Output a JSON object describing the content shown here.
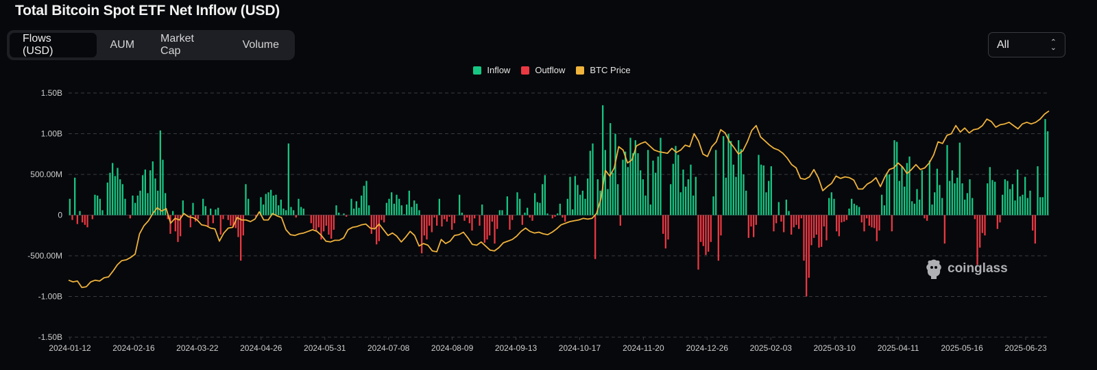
{
  "title": "Total Bitcoin Spot ETF Net Inflow (USD)",
  "tabs": [
    {
      "label": "Flows (USD)",
      "active": true
    },
    {
      "label": "AUM",
      "active": false
    },
    {
      "label": "Market Cap",
      "active": false
    },
    {
      "label": "Volume",
      "active": false
    }
  ],
  "range_select": {
    "value": "All"
  },
  "watermark": "coinglass",
  "colors": {
    "inflow": "#16c784",
    "outflow": "#ea3943",
    "price": "#f0b33c",
    "background": "#07080b",
    "grid": "#3a3b40",
    "axis_text": "#cfcfcf"
  },
  "chart_data": {
    "type": "bar",
    "legend": [
      {
        "name": "Inflow",
        "color": "#16c784"
      },
      {
        "name": "Outflow",
        "color": "#ea3943"
      },
      {
        "name": "BTC Price",
        "color": "#f0b33c"
      }
    ],
    "y_ticks": [
      "1.50B",
      "1.00B",
      "500.00M",
      "0",
      "-500.00M",
      "-1.00B",
      "-1.50B"
    ],
    "y_tick_values": [
      1500,
      1000,
      500,
      0,
      -500,
      -1000,
      -1500
    ],
    "ylim": [
      -1500,
      1500
    ],
    "y_unit": "millions USD",
    "x_ticks": [
      "2024-01-12",
      "2024-02-16",
      "2024-03-22",
      "2024-04-26",
      "2024-05-31",
      "2024-07-08",
      "2024-08-09",
      "2024-09-13",
      "2024-10-17",
      "2024-11-20",
      "2024-12-26",
      "2025-02-03",
      "2025-03-10",
      "2025-04-11",
      "2025-05-16",
      "2025-06-23"
    ],
    "grid": true,
    "legend_position": "top-center",
    "flows": [
      200,
      -60,
      460,
      -110,
      50,
      -90,
      -120,
      -150,
      0,
      -50,
      250,
      240,
      200,
      60,
      0,
      400,
      520,
      640,
      480,
      580,
      440,
      380,
      200,
      0,
      -40,
      240,
      150,
      240,
      300,
      490,
      560,
      270,
      550,
      660,
      450,
      300,
      1040,
      680,
      270,
      -50,
      -230,
      50,
      -200,
      -330,
      -260,
      180,
      0,
      0,
      -150,
      150,
      -80,
      -50,
      0,
      200,
      110,
      -140,
      80,
      -100,
      70,
      90,
      -240,
      -50,
      0,
      -60,
      -130,
      -150,
      -160,
      -270,
      -560,
      -250,
      380,
      200,
      0,
      0,
      -20,
      0,
      220,
      130,
      260,
      280,
      310,
      240,
      250,
      120,
      190,
      80,
      60,
      880,
      100,
      60,
      -30,
      200,
      100,
      80,
      0,
      0,
      -100,
      -170,
      -200,
      -150,
      -300,
      -200,
      -130,
      -240,
      -290,
      -180,
      120,
      30,
      0,
      20,
      -20,
      0,
      200,
      80,
      170,
      90,
      240,
      360,
      420,
      120,
      -230,
      -160,
      -360,
      -320,
      -60,
      -90,
      150,
      200,
      280,
      140,
      250,
      200,
      120,
      10,
      130,
      300,
      100,
      180,
      140,
      60,
      -470,
      -250,
      -300,
      -130,
      -210,
      -30,
      -130,
      200,
      -140,
      -50,
      -80,
      -20,
      -180,
      -100,
      0,
      250,
      30,
      -70,
      -30,
      -100,
      -190,
      -40,
      0,
      -130,
      130,
      -340,
      -300,
      -250,
      -80,
      -350,
      -170,
      60,
      60,
      0,
      230,
      -180,
      -60,
      0,
      280,
      200,
      -120,
      30,
      90,
      -30,
      -70,
      270,
      160,
      150,
      380,
      490,
      20,
      0,
      -40,
      -20,
      20,
      140,
      -30,
      -80,
      200,
      470,
      70,
      480,
      370,
      250,
      300,
      200,
      450,
      790,
      880,
      -540,
      440,
      300,
      1350,
      800,
      320,
      1130,
      520,
      1000,
      380,
      -130,
      680,
      780,
      590,
      950,
      760,
      920,
      760,
      550,
      440,
      240,
      800,
      130,
      670,
      520,
      720,
      950,
      -230,
      -410,
      -300,
      380,
      630,
      850,
      740,
      280,
      560,
      350,
      440,
      620,
      240,
      470,
      -670,
      -330,
      -380,
      -490,
      -450,
      -330,
      230,
      800,
      -560,
      -250,
      970,
      460,
      1000,
      910,
      620,
      470,
      920,
      810,
      500,
      300,
      -280,
      -140,
      -270,
      -120,
      740,
      620,
      610,
      280,
      420,
      600,
      -200,
      -100,
      160,
      -80,
      -210,
      190,
      50,
      -240,
      -150,
      -120,
      -170,
      -40,
      -560,
      -1000,
      -770,
      -370,
      -280,
      -240,
      -400,
      -390,
      -140,
      -310,
      210,
      280,
      200,
      -200,
      -260,
      -90,
      -80,
      -60,
      80,
      200,
      140,
      120,
      100,
      -90,
      -200,
      -40,
      -130,
      -150,
      -160,
      -320,
      -190,
      250,
      120,
      520,
      500,
      -200,
      920,
      900,
      420,
      600,
      350,
      640,
      720,
      170,
      140,
      320,
      190,
      550,
      -40,
      -70,
      670,
      130,
      280,
      570,
      370,
      210,
      -350,
      860,
      420,
      550,
      390,
      460,
      890,
      390,
      190,
      270,
      440,
      210
    ],
    "flows_tail": [
      -50,
      -610,
      -400,
      -220,
      -250,
      390,
      590,
      430,
      410,
      -170,
      -90,
      250,
      440,
      420,
      320,
      380,
      180,
      560,
      230,
      250,
      470,
      210,
      300,
      -190,
      -350,
      600,
      220,
      220,
      1180,
      1030
    ],
    "btc_price_index_note": "BTC price line plotted on hidden secondary scale",
    "btc_price_points": [
      -800,
      -820,
      -810,
      -890,
      -880,
      -820,
      -800,
      -810,
      -770,
      -760,
      -690,
      -610,
      -560,
      -550,
      -520,
      -480,
      -230,
      -130,
      -70,
      20,
      90,
      50,
      80,
      -100,
      -40,
      -60,
      20,
      -20,
      -30,
      -60,
      -120,
      -130,
      -160,
      -170,
      -320,
      -220,
      -160,
      -150,
      -30,
      -60,
      -60,
      -80,
      -50,
      40,
      -60,
      -60,
      20,
      -10,
      -30,
      -180,
      -240,
      -250,
      -230,
      -220,
      -200,
      -180,
      -200,
      -250,
      -320,
      -330,
      -310,
      -310,
      -280,
      -180,
      -150,
      -140,
      -120,
      -110,
      -160,
      -170,
      -110,
      -180,
      -250,
      -220,
      -260,
      -330,
      -270,
      -200,
      -250,
      -380,
      -350,
      -370,
      -440,
      -450,
      -300,
      -350,
      -320,
      -250,
      -240,
      -210,
      -280,
      -360,
      -370,
      -330,
      -380,
      -430,
      -440,
      -400,
      -340,
      -320,
      -300,
      -260,
      -200,
      -160,
      -200,
      -220,
      -210,
      -230,
      -240,
      -210,
      -170,
      -120,
      -100,
      -80,
      -70,
      -60,
      -40,
      -50,
      -40,
      20,
      200,
      550,
      480,
      580,
      840,
      800,
      640,
      680,
      850,
      880,
      900,
      850,
      800,
      780,
      770,
      760,
      820,
      770,
      800,
      860,
      840,
      1000,
      910,
      750,
      720,
      840,
      900,
      1050,
      1010,
      900,
      830,
      750,
      790,
      900,
      1040,
      1100,
      960,
      910,
      860,
      820,
      800,
      760,
      700,
      620,
      580,
      450,
      440,
      470,
      560,
      460,
      300,
      350,
      390,
      480,
      450,
      470,
      460,
      430,
      320,
      320,
      380,
      410,
      460,
      350,
      470,
      560,
      580,
      640,
      590,
      510,
      560,
      620,
      560,
      580,
      640,
      740,
      900,
      880,
      980,
      1000,
      1100,
      1020,
      1070,
      1010,
      1050,
      1060,
      1100,
      1180,
      1150,
      1080,
      1110,
      1120,
      1140,
      1100,
      1060,
      1120,
      1140,
      1120,
      1140,
      1180,
      1240,
      1280
    ]
  }
}
